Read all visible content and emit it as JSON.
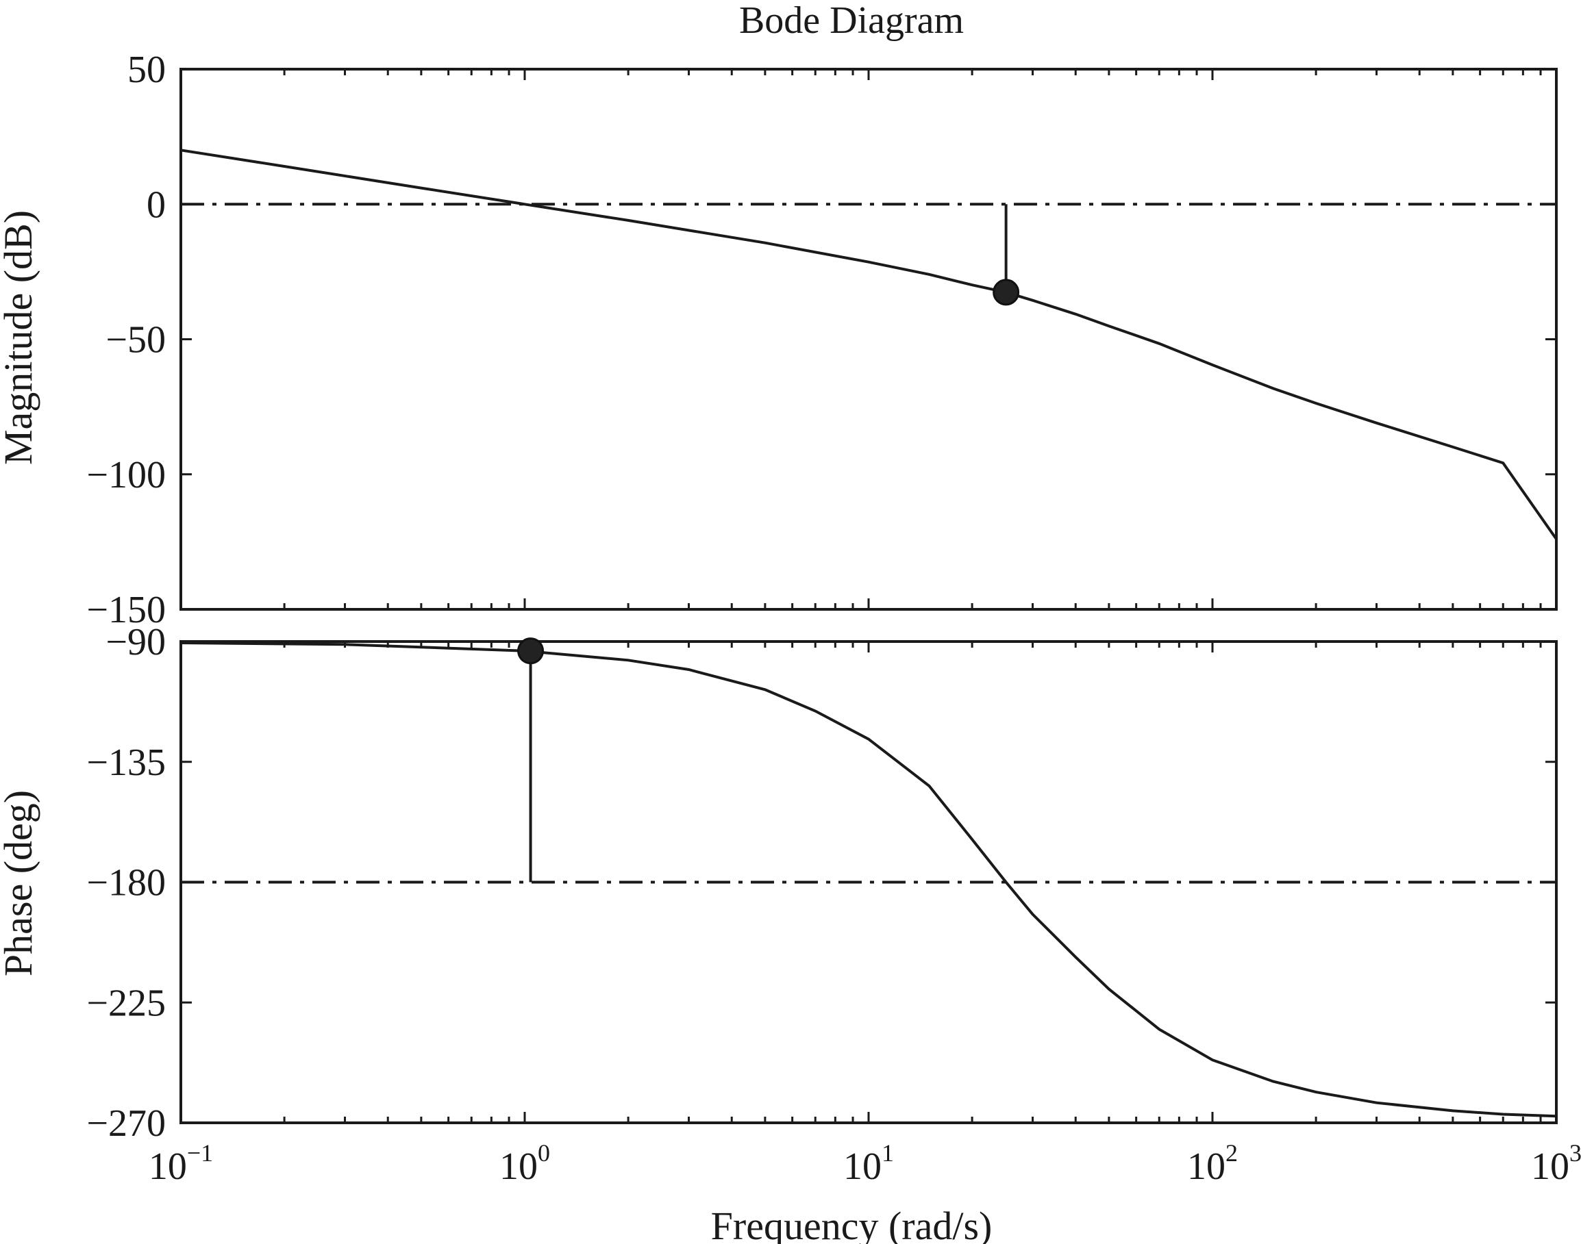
{
  "chart_data": {
    "type": "line",
    "title": "Bode Diagram",
    "xlabel": "Frequency (rad/s)",
    "xscale": "log",
    "xlim": [
      0.1,
      1000
    ],
    "x_ticks": [
      {
        "value": 0.1,
        "base": "10",
        "exp": "−1"
      },
      {
        "value": 1,
        "base": "10",
        "exp": "0"
      },
      {
        "value": 10,
        "base": "10",
        "exp": "1"
      },
      {
        "value": 100,
        "base": "10",
        "exp": "2"
      },
      {
        "value": 1000,
        "base": "10",
        "exp": "3"
      }
    ],
    "panels": [
      {
        "id": "magnitude",
        "ylabel": "Magnitude (dB)",
        "ylim": [
          -150,
          50
        ],
        "y_ticks": [
          {
            "value": 50,
            "label": "50"
          },
          {
            "value": 0,
            "label": "0"
          },
          {
            "value": -50,
            "label": "−50"
          },
          {
            "value": -100,
            "label": "−100"
          },
          {
            "value": -150,
            "label": "−150"
          }
        ],
        "reference_line": 0,
        "margin_marker": {
          "x": 25.1,
          "y": -32.6
        },
        "series": {
          "x": [
            0.1,
            0.2,
            0.5,
            1,
            2,
            5,
            10,
            15,
            20,
            25.1,
            30,
            40,
            50,
            70,
            100,
            150,
            200,
            300,
            500,
            700,
            1000
          ],
          "values": [
            20,
            14,
            6,
            0,
            -6,
            -14.3,
            -21.4,
            -26,
            -29.9,
            -32.6,
            -35.6,
            -40.7,
            -45.1,
            -51.6,
            -59.5,
            -68.2,
            -73.7,
            -81.0,
            -89.9,
            -95.8,
            -124
          ]
        }
      },
      {
        "id": "phase",
        "ylabel": "Phase (deg)",
        "ylim": [
          -270,
          -90
        ],
        "y_ticks": [
          {
            "value": -90,
            "label": "−90"
          },
          {
            "value": -135,
            "label": "−135"
          },
          {
            "value": -180,
            "label": "−180"
          },
          {
            "value": -225,
            "label": "−225"
          },
          {
            "value": -270,
            "label": "−270"
          }
        ],
        "reference_line": -180,
        "margin_marker": {
          "x": 1.04,
          "y": -93.5
        },
        "series": {
          "x": [
            0.1,
            0.3,
            1,
            2,
            3,
            5,
            7,
            10,
            15,
            20,
            25.1,
            30,
            40,
            50,
            70,
            100,
            150,
            200,
            300,
            500,
            700,
            1000
          ],
          "values": [
            -90.5,
            -91.1,
            -93.5,
            -97,
            -100.5,
            -108,
            -116,
            -126.5,
            -144,
            -164,
            -180,
            -192,
            -208,
            -220,
            -235,
            -246.5,
            -254.5,
            -258.5,
            -262.5,
            -265.5,
            -266.8,
            -267.5
          ]
        }
      }
    ]
  }
}
